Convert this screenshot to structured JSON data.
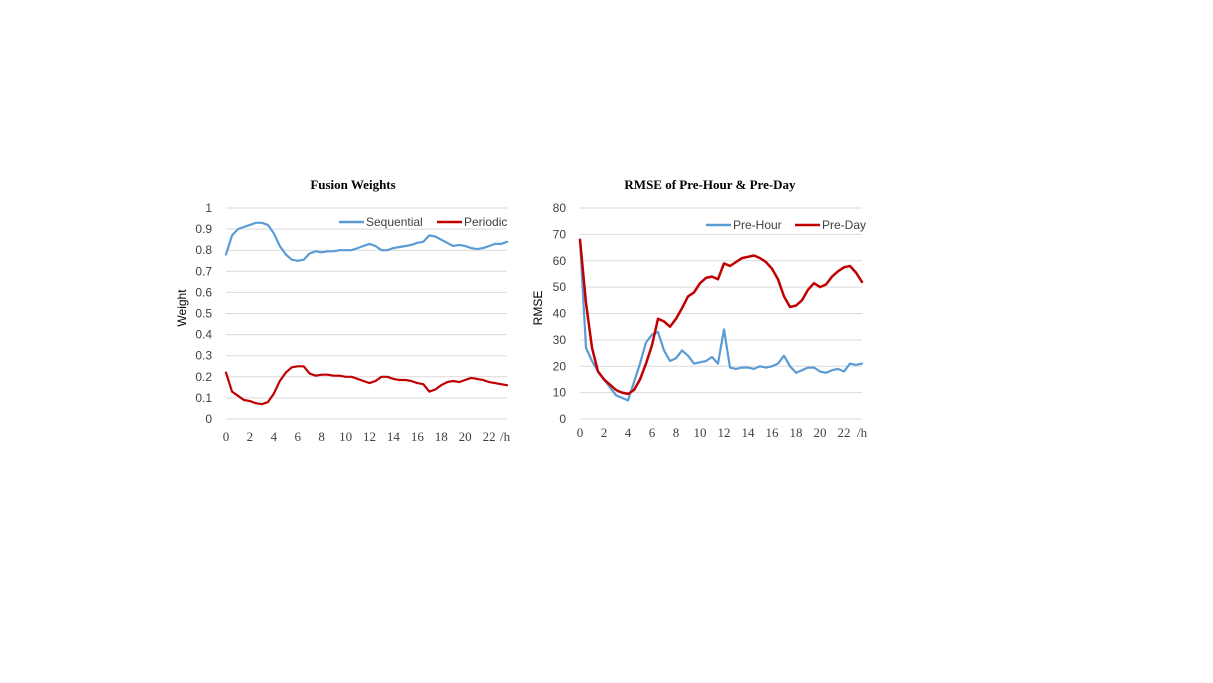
{
  "chart_data": [
    {
      "type": "line",
      "title": "Fusion Weights",
      "ylabel": "Weight",
      "xunit": "/h",
      "ylim": [
        0,
        1
      ],
      "yticks": [
        "0",
        "0.1",
        "0.2",
        "0.3",
        "0.4",
        "0.5",
        "0.6",
        "0.7",
        "0.8",
        "0.9",
        "1"
      ],
      "xlim": [
        0,
        23.5
      ],
      "xticks": [
        "0",
        "2",
        "4",
        "6",
        "8",
        "10",
        "12",
        "14",
        "16",
        "18",
        "20",
        "22"
      ],
      "grid": true,
      "legend_position": "top-right",
      "x": [
        0,
        0.5,
        1,
        1.5,
        2,
        2.5,
        3,
        3.5,
        4,
        4.5,
        5,
        5.5,
        6,
        6.5,
        7,
        7.5,
        8,
        8.5,
        9,
        9.5,
        10,
        10.5,
        11,
        11.5,
        12,
        12.5,
        13,
        13.5,
        14,
        14.5,
        15,
        15.5,
        16,
        16.5,
        17,
        17.5,
        18,
        18.5,
        19,
        19.5,
        20,
        20.5,
        21,
        21.5,
        22,
        22.5,
        23,
        23.5
      ],
      "series": [
        {
          "name": "Sequential",
          "color": "#5b9bd5",
          "values": [
            0.78,
            0.87,
            0.9,
            0.91,
            0.92,
            0.93,
            0.93,
            0.92,
            0.88,
            0.82,
            0.78,
            0.755,
            0.75,
            0.755,
            0.785,
            0.795,
            0.79,
            0.795,
            0.795,
            0.8,
            0.8,
            0.8,
            0.81,
            0.82,
            0.83,
            0.82,
            0.8,
            0.8,
            0.81,
            0.815,
            0.82,
            0.825,
            0.835,
            0.84,
            0.87,
            0.865,
            0.85,
            0.835,
            0.82,
            0.825,
            0.82,
            0.81,
            0.805,
            0.81,
            0.82,
            0.83,
            0.83,
            0.84
          ]
        },
        {
          "name": "Periodic",
          "color": "#c00000",
          "values": [
            0.22,
            0.13,
            0.11,
            0.09,
            0.085,
            0.075,
            0.07,
            0.08,
            0.12,
            0.18,
            0.22,
            0.245,
            0.25,
            0.25,
            0.215,
            0.205,
            0.21,
            0.21,
            0.205,
            0.205,
            0.2,
            0.2,
            0.19,
            0.18,
            0.17,
            0.18,
            0.2,
            0.2,
            0.19,
            0.185,
            0.185,
            0.18,
            0.17,
            0.165,
            0.13,
            0.14,
            0.16,
            0.175,
            0.18,
            0.175,
            0.185,
            0.195,
            0.19,
            0.185,
            0.175,
            0.17,
            0.165,
            0.16
          ]
        }
      ]
    },
    {
      "type": "line",
      "title": "RMSE of Pre-Hour & Pre-Day",
      "ylabel": "RMSE",
      "xunit": "/h",
      "ylim": [
        0,
        80
      ],
      "yticks": [
        "0",
        "10",
        "20",
        "30",
        "40",
        "50",
        "60",
        "70",
        "80"
      ],
      "xlim": [
        0,
        23.5
      ],
      "xticks": [
        "0",
        "2",
        "4",
        "6",
        "8",
        "10",
        "12",
        "14",
        "16",
        "18",
        "20",
        "22"
      ],
      "grid": true,
      "legend_position": "top-right",
      "x": [
        0,
        0.5,
        1,
        1.5,
        2,
        2.5,
        3,
        3.5,
        4,
        4.5,
        5,
        5.5,
        6,
        6.5,
        7,
        7.5,
        8,
        8.5,
        9,
        9.5,
        10,
        10.5,
        11,
        11.5,
        12,
        12.5,
        13,
        13.5,
        14,
        14.5,
        15,
        15.5,
        16,
        16.5,
        17,
        17.5,
        18,
        18.5,
        19,
        19.5,
        20,
        20.5,
        21,
        21.5,
        22,
        22.5,
        23,
        23.5
      ],
      "series": [
        {
          "name": "Pre-Hour",
          "color": "#5b9bd5",
          "values": [
            68,
            27,
            22,
            18,
            15,
            12,
            9,
            8,
            7,
            14,
            21,
            29,
            32,
            33,
            26,
            22,
            23,
            26,
            24,
            21,
            21.5,
            22,
            23.5,
            21,
            34,
            19.5,
            19,
            19.5,
            19.5,
            19,
            20,
            19.5,
            20,
            21,
            24,
            20,
            17.5,
            18.5,
            19.5,
            19.5,
            18,
            17.5,
            18.5,
            19,
            18,
            21,
            20.5,
            21
          ]
        },
        {
          "name": "Pre-Day",
          "color": "#c00000",
          "values": [
            68,
            44,
            27,
            18,
            15,
            13,
            11,
            10,
            9.5,
            11,
            15,
            21,
            28,
            38,
            37,
            35,
            38,
            42,
            46.5,
            48,
            51.5,
            53.5,
            54,
            53,
            59,
            58,
            59.5,
            61,
            61.5,
            62,
            61,
            59.5,
            57,
            53,
            46.5,
            42.5,
            43,
            45,
            49,
            51.5,
            50,
            51,
            54,
            56,
            57.5,
            58,
            55.5,
            52
          ]
        }
      ]
    }
  ]
}
